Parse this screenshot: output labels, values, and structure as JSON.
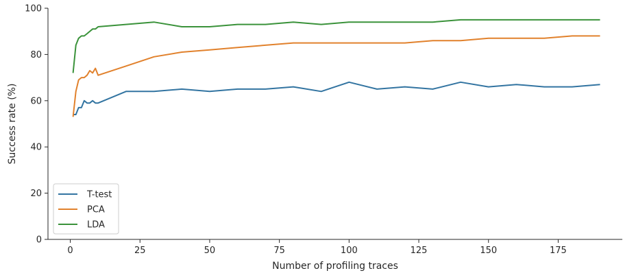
{
  "chart_data": {
    "type": "line",
    "title": "",
    "xlabel": "Number of profiling traces",
    "ylabel": "Success rate (%)",
    "xlim": [
      -8,
      198
    ],
    "ylim": [
      0,
      100
    ],
    "xticks": [
      0,
      25,
      50,
      75,
      100,
      125,
      150,
      175
    ],
    "yticks": [
      0,
      20,
      40,
      60,
      80,
      100
    ],
    "grid": false,
    "legend_position": "lower-left",
    "series": [
      {
        "name": "T-test",
        "color": "#3274a1",
        "x": [
          1,
          2,
          3,
          4,
          5,
          6,
          7,
          8,
          9,
          10,
          20,
          30,
          40,
          50,
          60,
          70,
          80,
          90,
          100,
          110,
          120,
          130,
          140,
          150,
          160,
          170,
          180,
          190
        ],
        "values": [
          54,
          54,
          57,
          57,
          60,
          59,
          59,
          60,
          59,
          59,
          64,
          64,
          65,
          64,
          65,
          65,
          66,
          64,
          68,
          65,
          66,
          65,
          68,
          66,
          67,
          66,
          66,
          67
        ]
      },
      {
        "name": "PCA",
        "color": "#e1812c",
        "x": [
          1,
          2,
          3,
          4,
          5,
          6,
          7,
          8,
          9,
          10,
          20,
          30,
          40,
          50,
          60,
          70,
          80,
          90,
          100,
          110,
          120,
          130,
          140,
          150,
          160,
          170,
          180,
          190
        ],
        "values": [
          53,
          64,
          69,
          70,
          70,
          71,
          73,
          72,
          74,
          71,
          75,
          79,
          81,
          82,
          83,
          84,
          85,
          85,
          85,
          85,
          85,
          86,
          86,
          87,
          87,
          87,
          88,
          88
        ]
      },
      {
        "name": "LDA",
        "color": "#3a923a",
        "x": [
          1,
          2,
          3,
          4,
          5,
          6,
          7,
          8,
          9,
          10,
          20,
          30,
          40,
          50,
          60,
          70,
          80,
          90,
          100,
          110,
          120,
          130,
          140,
          150,
          160,
          170,
          180,
          190
        ],
        "values": [
          72,
          84,
          87,
          88,
          88,
          89,
          90,
          91,
          91,
          92,
          93,
          94,
          92,
          92,
          93,
          93,
          94,
          93,
          94,
          94,
          94,
          94,
          95,
          95,
          95,
          95,
          95,
          95
        ]
      }
    ]
  }
}
